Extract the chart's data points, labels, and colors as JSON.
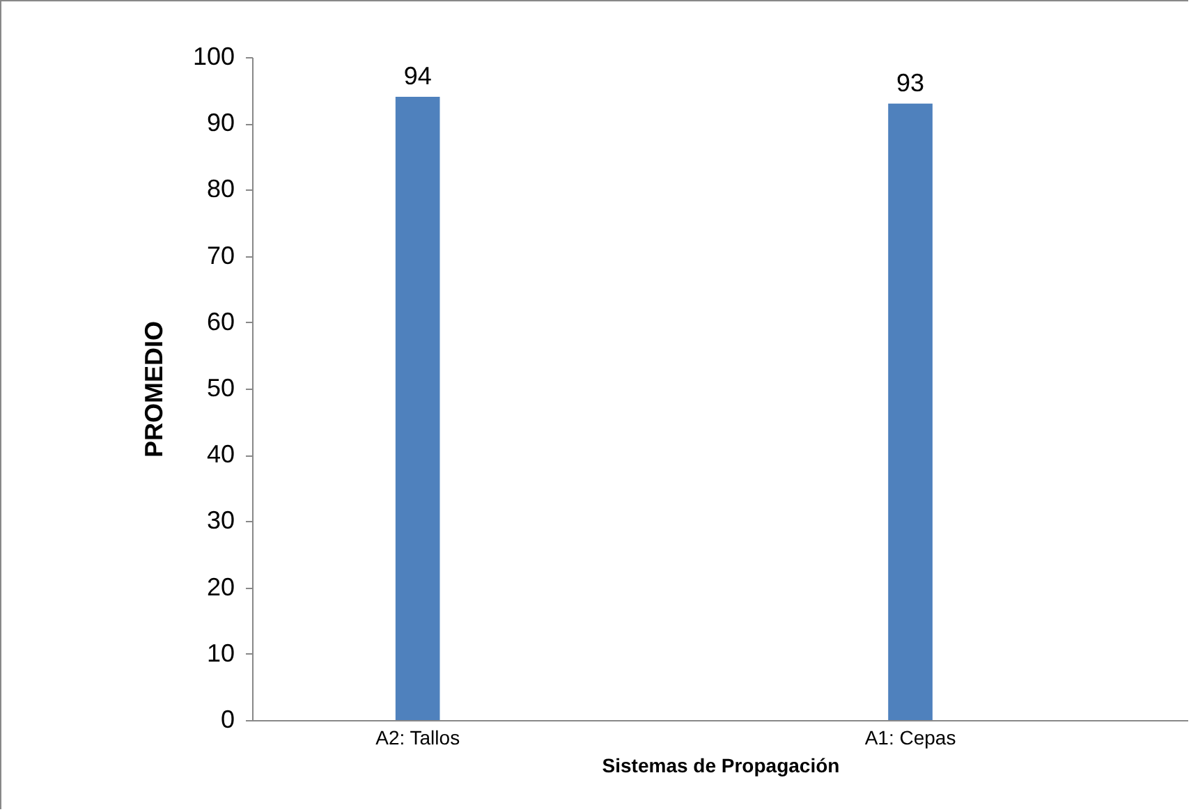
{
  "chart_data": {
    "type": "bar",
    "xlabel": "Sistemas de Propagación",
    "ylabel": "PROMEDIO",
    "categories": [
      "A2: Tallos",
      "A1: Cepas"
    ],
    "values": [
      94,
      93
    ],
    "color": "#4f81bd",
    "ylim": [
      0,
      100
    ],
    "yticks": [
      0,
      10,
      20,
      30,
      40,
      50,
      60,
      70,
      80,
      90,
      100
    ],
    "grid": false,
    "data_labels": true
  }
}
